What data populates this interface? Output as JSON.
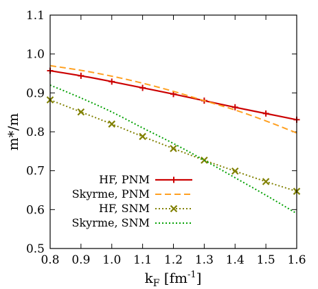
{
  "chart_data": {
    "type": "line",
    "xlabel": "k",
    "xlabel_sub": "F",
    "xlabel_unit": " [fm",
    "xlabel_sup": "-1",
    "xlabel_close": "]",
    "ylabel": "m*/m",
    "xlim": [
      0.8,
      1.6
    ],
    "ylim": [
      0.5,
      1.1
    ],
    "xticks": [
      "0.8",
      "0.9",
      "1.0",
      "1.1",
      "1.2",
      "1.3",
      "1.4",
      "1.5",
      "1.6"
    ],
    "yticks": [
      "0.5",
      "0.6",
      "0.7",
      "0.8",
      "0.9",
      "1.0",
      "1.1"
    ],
    "grid": false,
    "legend_position": "bottom-left",
    "series": [
      {
        "name": "HF, PNM",
        "color": "#cc0000",
        "style": "solid",
        "marker": "plus",
        "x": [
          0.8,
          0.9,
          1.0,
          1.1,
          1.2,
          1.3,
          1.4,
          1.5,
          1.6
        ],
        "y": [
          0.957,
          0.944,
          0.929,
          0.913,
          0.897,
          0.88,
          0.863,
          0.847,
          0.831
        ]
      },
      {
        "name": "Skyrme, PNM",
        "color": "#ffa020",
        "style": "dashed",
        "marker": "none",
        "x": [
          0.8,
          0.9,
          1.0,
          1.1,
          1.2,
          1.3,
          1.4,
          1.5,
          1.6
        ],
        "y": [
          0.97,
          0.958,
          0.943,
          0.925,
          0.904,
          0.88,
          0.856,
          0.828,
          0.797
        ]
      },
      {
        "name": "HF, SNM",
        "color": "#808000",
        "style": "dotted",
        "marker": "x",
        "x": [
          0.8,
          0.9,
          1.0,
          1.1,
          1.2,
          1.3,
          1.4,
          1.5,
          1.6
        ],
        "y": [
          0.882,
          0.851,
          0.82,
          0.788,
          0.757,
          0.727,
          0.699,
          0.672,
          0.647
        ]
      },
      {
        "name": "Skyrme, SNM",
        "color": "#00a000",
        "style": "dotted",
        "marker": "none",
        "x": [
          0.8,
          0.9,
          1.0,
          1.1,
          1.2,
          1.3,
          1.4,
          1.5,
          1.6
        ],
        "y": [
          0.92,
          0.887,
          0.851,
          0.81,
          0.77,
          0.727,
          0.682,
          0.637,
          0.59
        ]
      }
    ]
  }
}
